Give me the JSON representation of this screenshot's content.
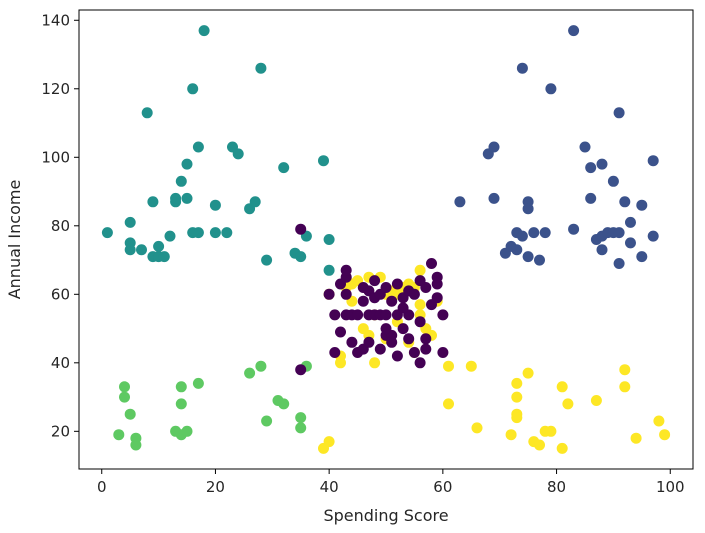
{
  "chart_data": {
    "type": "scatter",
    "xlabel": "Spending Score",
    "ylabel": "Annual Income",
    "xlim": [
      -4,
      104
    ],
    "ylim": [
      9,
      143
    ],
    "xticks": [
      0,
      20,
      40,
      60,
      80,
      100
    ],
    "yticks": [
      20,
      40,
      60,
      80,
      100,
      120,
      140
    ],
    "grid": false,
    "legend": "none",
    "colors": {
      "dark_purple": "#440154",
      "blue": "#3b528b",
      "teal": "#21918c",
      "green": "#5ec962",
      "yellow": "#fde725"
    },
    "series": [
      {
        "color": "#21918c",
        "points": [
          [
            1,
            78
          ],
          [
            5,
            81
          ],
          [
            5,
            75
          ],
          [
            5,
            73
          ],
          [
            7,
            73
          ],
          [
            9,
            71
          ],
          [
            10,
            74
          ],
          [
            10,
            71
          ],
          [
            11,
            71
          ],
          [
            12,
            77
          ],
          [
            13,
            87
          ],
          [
            13,
            88
          ],
          [
            14,
            93
          ],
          [
            15,
            88
          ],
          [
            15,
            98
          ],
          [
            16,
            120
          ],
          [
            17,
            103
          ],
          [
            17,
            78
          ],
          [
            18,
            137
          ],
          [
            16,
            78
          ],
          [
            20,
            86
          ],
          [
            20,
            78
          ],
          [
            22,
            78
          ],
          [
            23,
            103
          ],
          [
            24,
            101
          ],
          [
            26,
            85
          ],
          [
            27,
            87
          ],
          [
            28,
            126
          ],
          [
            29,
            70
          ],
          [
            32,
            97
          ],
          [
            34,
            72
          ],
          [
            35,
            71
          ],
          [
            36,
            77
          ],
          [
            39,
            99
          ],
          [
            40,
            76
          ],
          [
            40,
            67
          ],
          [
            9,
            87
          ],
          [
            8,
            113
          ]
        ]
      },
      {
        "color": "#3b528b",
        "points": [
          [
            63,
            87
          ],
          [
            68,
            101
          ],
          [
            69,
            103
          ],
          [
            69,
            88
          ],
          [
            71,
            72
          ],
          [
            72,
            74
          ],
          [
            73,
            73
          ],
          [
            73,
            78
          ],
          [
            74,
            126
          ],
          [
            74,
            77
          ],
          [
            75,
            87
          ],
          [
            75,
            85
          ],
          [
            75,
            71
          ],
          [
            76,
            78
          ],
          [
            77,
            70
          ],
          [
            78,
            78
          ],
          [
            79,
            120
          ],
          [
            83,
            137
          ],
          [
            83,
            79
          ],
          [
            85,
            103
          ],
          [
            86,
            97
          ],
          [
            86,
            88
          ],
          [
            87,
            76
          ],
          [
            88,
            98
          ],
          [
            88,
            77
          ],
          [
            88,
            73
          ],
          [
            89,
            78
          ],
          [
            90,
            78
          ],
          [
            90,
            93
          ],
          [
            91,
            78
          ],
          [
            91,
            113
          ],
          [
            91,
            69
          ],
          [
            92,
            87
          ],
          [
            93,
            81
          ],
          [
            93,
            75
          ],
          [
            95,
            86
          ],
          [
            95,
            71
          ],
          [
            97,
            99
          ],
          [
            97,
            77
          ]
        ]
      },
      {
        "color": "#5ec962",
        "points": [
          [
            3,
            19
          ],
          [
            4,
            33
          ],
          [
            4,
            30
          ],
          [
            5,
            25
          ],
          [
            6,
            18
          ],
          [
            6,
            16
          ],
          [
            13,
            20
          ],
          [
            14,
            33
          ],
          [
            14,
            28
          ],
          [
            14,
            19
          ],
          [
            15,
            20
          ],
          [
            17,
            34
          ],
          [
            26,
            37
          ],
          [
            28,
            39
          ],
          [
            29,
            23
          ],
          [
            31,
            29
          ],
          [
            32,
            28
          ],
          [
            35,
            24
          ],
          [
            35,
            21
          ],
          [
            36,
            39
          ]
        ]
      },
      {
        "color": "#fde725",
        "points": [
          [
            39,
            15
          ],
          [
            40,
            17
          ],
          [
            42,
            40
          ],
          [
            43,
            62
          ],
          [
            44,
            63
          ],
          [
            45,
            64
          ],
          [
            47,
            65
          ],
          [
            47,
            48
          ],
          [
            48,
            40
          ],
          [
            49,
            65
          ],
          [
            50,
            47
          ],
          [
            51,
            61
          ],
          [
            52,
            60
          ],
          [
            53,
            62
          ],
          [
            54,
            63
          ],
          [
            55,
            43
          ],
          [
            56,
            67
          ],
          [
            56,
            54
          ],
          [
            57,
            50
          ],
          [
            58,
            48
          ],
          [
            59,
            58
          ],
          [
            61,
            39
          ],
          [
            61,
            28
          ],
          [
            65,
            39
          ],
          [
            66,
            21
          ],
          [
            72,
            19
          ],
          [
            73,
            34
          ],
          [
            73,
            30
          ],
          [
            73,
            25
          ],
          [
            73,
            24
          ],
          [
            75,
            37
          ],
          [
            76,
            17
          ],
          [
            77,
            16
          ],
          [
            78,
            20
          ],
          [
            79,
            20
          ],
          [
            81,
            33
          ],
          [
            81,
            15
          ],
          [
            82,
            28
          ],
          [
            87,
            29
          ],
          [
            92,
            38
          ],
          [
            92,
            33
          ],
          [
            94,
            18
          ],
          [
            98,
            23
          ],
          [
            99,
            19
          ],
          [
            40,
            60
          ],
          [
            44,
            58
          ],
          [
            46,
            50
          ],
          [
            48,
            54
          ],
          [
            50,
            60
          ],
          [
            52,
            52
          ],
          [
            54,
            46
          ],
          [
            56,
            57
          ],
          [
            42,
            42
          ],
          [
            55,
            62
          ]
        ]
      },
      {
        "color": "#440154",
        "points": [
          [
            35,
            79
          ],
          [
            35,
            38
          ],
          [
            40,
            60
          ],
          [
            41,
            54
          ],
          [
            41,
            43
          ],
          [
            42,
            49
          ],
          [
            42,
            63
          ],
          [
            43,
            65
          ],
          [
            43,
            67
          ],
          [
            43,
            54
          ],
          [
            43,
            60
          ],
          [
            44,
            54
          ],
          [
            44,
            46
          ],
          [
            45,
            54
          ],
          [
            45,
            43
          ],
          [
            46,
            44
          ],
          [
            46,
            58
          ],
          [
            47,
            54
          ],
          [
            47,
            61
          ],
          [
            47,
            46
          ],
          [
            48,
            54
          ],
          [
            48,
            64
          ],
          [
            48,
            59
          ],
          [
            49,
            54
          ],
          [
            49,
            44
          ],
          [
            49,
            60
          ],
          [
            50,
            48
          ],
          [
            50,
            62
          ],
          [
            50,
            54
          ],
          [
            51,
            48
          ],
          [
            51,
            58
          ],
          [
            51,
            46
          ],
          [
            52,
            63
          ],
          [
            52,
            42
          ],
          [
            52,
            54
          ],
          [
            53,
            50
          ],
          [
            53,
            59
          ],
          [
            54,
            61
          ],
          [
            54,
            47
          ],
          [
            54,
            54
          ],
          [
            55,
            43
          ],
          [
            55,
            60
          ],
          [
            56,
            40
          ],
          [
            56,
            64
          ],
          [
            56,
            52
          ],
          [
            57,
            62
          ],
          [
            57,
            47
          ],
          [
            58,
            57
          ],
          [
            58,
            69
          ],
          [
            59,
            63
          ],
          [
            59,
            65
          ],
          [
            59,
            59
          ],
          [
            60,
            43
          ],
          [
            60,
            54
          ],
          [
            46,
            62
          ],
          [
            50,
            50
          ],
          [
            53,
            56
          ],
          [
            57,
            44
          ]
        ]
      }
    ]
  }
}
